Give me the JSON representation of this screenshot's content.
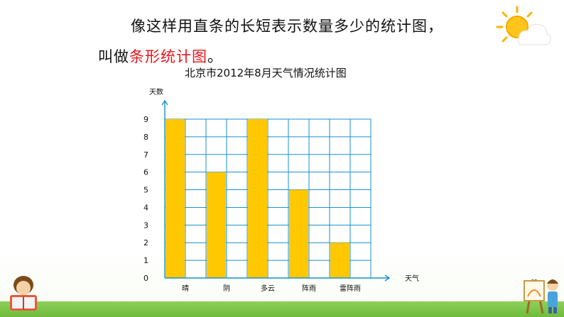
{
  "heading": {
    "line1": "像这样用直条的长短表示数量多少的统计图，",
    "line2_prefix": "叫做",
    "line2_highlight": "条形统计图",
    "line2_suffix": "。"
  },
  "chart_data": {
    "type": "bar",
    "title": "北京市2012年8月天气情况统计图",
    "ylabel": "天数",
    "xlabel": "天气",
    "categories": [
      "晴",
      "阴",
      "多云",
      "阵雨",
      "雷阵雨"
    ],
    "values": [
      9,
      6,
      9,
      5,
      2
    ],
    "ylim": [
      0,
      9
    ],
    "yticks": [
      "0",
      "1",
      "2",
      "3",
      "4",
      "5",
      "6",
      "7",
      "8",
      "9"
    ],
    "grid": true,
    "bar_color": "#ffc800",
    "grid_color": "#1a8fd1"
  },
  "colors": {
    "highlight": "#e8161b",
    "grass": "#6fbb3d"
  },
  "decorations": {
    "top_right": "sun-cloud-icon",
    "bottom_left": "reading-child-icon",
    "bottom_right": "painting-child-icon"
  }
}
